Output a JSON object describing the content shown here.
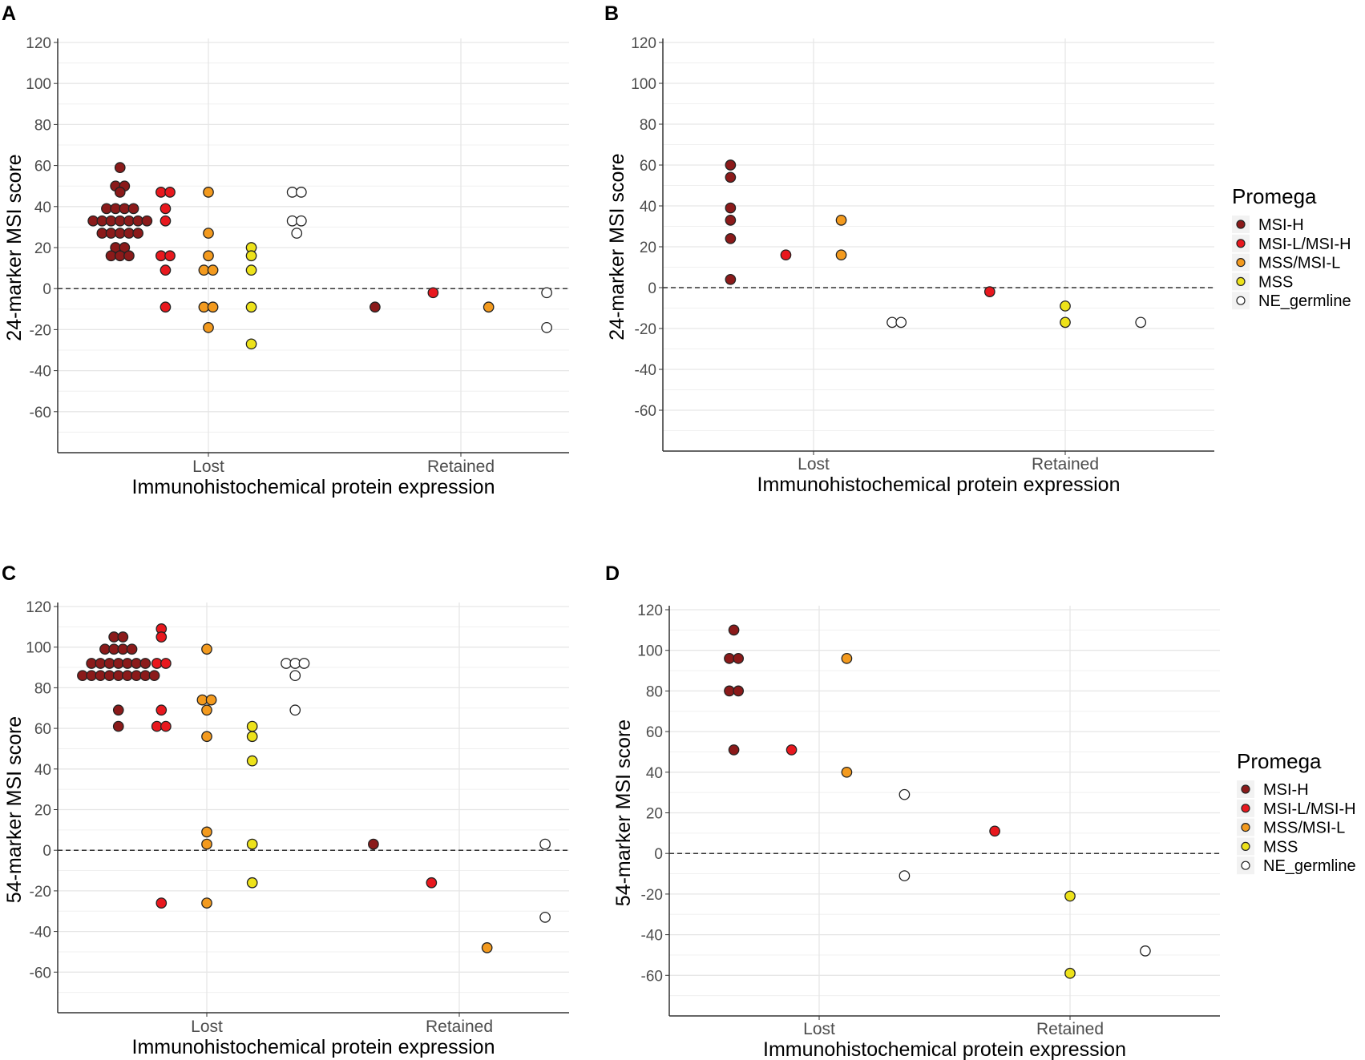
{
  "legend": {
    "title": "Promega",
    "entries": [
      {
        "label": "MSI-H",
        "color": "#8b1a1a"
      },
      {
        "label": "MSI-L/MSI-H",
        "color": "#e8181e"
      },
      {
        "label": "MSS/MSI-L",
        "color": "#f39a1e"
      },
      {
        "label": "MSS",
        "color": "#ede21a"
      },
      {
        "label": "NE_germline",
        "color": "#ffffff"
      }
    ]
  },
  "chart_data": [
    {
      "panel": "A",
      "type": "scatter",
      "xlabel": "Immunohistochemical protein expression",
      "ylabel": "24-marker MSI score",
      "categories": [
        "Lost",
        "Retained"
      ],
      "ylim": [
        -80,
        120
      ],
      "yticks": [
        -60,
        -40,
        -20,
        0,
        20,
        40,
        60,
        80,
        100,
        120
      ],
      "reference_line": 0,
      "series": [
        {
          "category": "Lost",
          "group": "MSI-H",
          "offset": -0.35,
          "values": [
            59,
            50,
            50,
            47,
            39,
            39,
            39,
            39,
            33,
            33,
            33,
            33,
            33,
            33,
            33,
            27,
            27,
            27,
            27,
            27,
            20,
            20,
            16,
            16,
            16
          ]
        },
        {
          "category": "Lost",
          "group": "MSI-L/MSI-H",
          "offset": -0.17,
          "values": [
            47,
            47,
            39,
            33,
            16,
            16,
            9,
            -9
          ]
        },
        {
          "category": "Lost",
          "group": "MSS/MSI-L",
          "offset": 0,
          "values": [
            47,
            27,
            16,
            9,
            9,
            -9,
            -9,
            -19
          ]
        },
        {
          "category": "Lost",
          "group": "MSS",
          "offset": 0.17,
          "values": [
            20,
            16,
            9,
            -9,
            -27
          ]
        },
        {
          "category": "Lost",
          "group": "NE_germline",
          "offset": 0.35,
          "values": [
            47,
            47,
            33,
            33,
            27
          ]
        },
        {
          "category": "Retained",
          "group": "MSI-H",
          "offset": -0.34,
          "values": [
            -9
          ]
        },
        {
          "category": "Retained",
          "group": "MSI-L/MSI-H",
          "offset": -0.11,
          "values": [
            -2
          ]
        },
        {
          "category": "Retained",
          "group": "MSS/MSI-L",
          "offset": 0.11,
          "values": [
            -9
          ]
        },
        {
          "category": "Retained",
          "group": "NE_germline",
          "offset": 0.34,
          "values": [
            -2,
            -19
          ]
        }
      ]
    },
    {
      "panel": "B",
      "type": "scatter",
      "xlabel": "Immunohistochemical protein expression",
      "ylabel": "24-marker MSI score",
      "categories": [
        "Lost",
        "Retained"
      ],
      "ylim": [
        -80,
        120
      ],
      "yticks": [
        -60,
        -40,
        -20,
        0,
        20,
        40,
        60,
        80,
        100,
        120
      ],
      "reference_line": 0,
      "series": [
        {
          "category": "Lost",
          "group": "MSI-H",
          "offset": -0.33,
          "values": [
            60,
            54,
            39,
            33,
            24,
            4
          ]
        },
        {
          "category": "Lost",
          "group": "MSI-L/MSI-H",
          "offset": -0.11,
          "values": [
            16
          ]
        },
        {
          "category": "Lost",
          "group": "MSS/MSI-L",
          "offset": 0.11,
          "values": [
            33,
            16
          ]
        },
        {
          "category": "Lost",
          "group": "NE_germline",
          "offset": 0.33,
          "values": [
            -17,
            -17
          ]
        },
        {
          "category": "Retained",
          "group": "MSI-L/MSI-H",
          "offset": -0.3,
          "values": [
            -2
          ]
        },
        {
          "category": "Retained",
          "group": "MSS",
          "offset": 0,
          "values": [
            -9,
            -17
          ]
        },
        {
          "category": "Retained",
          "group": "NE_germline",
          "offset": 0.3,
          "values": [
            -17
          ]
        }
      ]
    },
    {
      "panel": "C",
      "type": "scatter",
      "xlabel": "Immunohistochemical protein expression",
      "ylabel": "54-marker MSI score",
      "categories": [
        "Lost",
        "Retained"
      ],
      "ylim": [
        -80,
        120
      ],
      "yticks": [
        -60,
        -40,
        -20,
        0,
        20,
        40,
        60,
        80,
        100,
        120
      ],
      "reference_line": 0,
      "series": [
        {
          "category": "Lost",
          "group": "MSI-H",
          "offset": -0.35,
          "values": [
            105,
            105,
            99,
            99,
            99,
            99,
            92,
            92,
            92,
            92,
            92,
            92,
            92,
            86,
            86,
            86,
            86,
            86,
            86,
            86,
            86,
            86,
            69,
            61
          ]
        },
        {
          "category": "Lost",
          "group": "MSI-L/MSI-H",
          "offset": -0.18,
          "values": [
            109,
            105,
            92,
            92,
            69,
            61,
            61,
            -26
          ]
        },
        {
          "category": "Lost",
          "group": "MSS/MSI-L",
          "offset": 0,
          "values": [
            99,
            74,
            74,
            69,
            56,
            9,
            3,
            -26
          ]
        },
        {
          "category": "Lost",
          "group": "MSS",
          "offset": 0.18,
          "values": [
            61,
            56,
            44,
            3,
            -16
          ]
        },
        {
          "category": "Lost",
          "group": "NE_germline",
          "offset": 0.35,
          "values": [
            92,
            92,
            92,
            86,
            69
          ]
        },
        {
          "category": "Retained",
          "group": "MSI-H",
          "offset": -0.34,
          "values": [
            3
          ]
        },
        {
          "category": "Retained",
          "group": "MSI-L/MSI-H",
          "offset": -0.11,
          "values": [
            -16
          ]
        },
        {
          "category": "Retained",
          "group": "MSS/MSI-L",
          "offset": 0.11,
          "values": [
            -48
          ]
        },
        {
          "category": "Retained",
          "group": "NE_germline",
          "offset": 0.34,
          "values": [
            3,
            -33
          ]
        }
      ]
    },
    {
      "panel": "D",
      "type": "scatter",
      "xlabel": "Immunohistochemical protein expression",
      "ylabel": "54-marker MSI score",
      "categories": [
        "Lost",
        "Retained"
      ],
      "ylim": [
        -80,
        120
      ],
      "yticks": [
        -60,
        -40,
        -20,
        0,
        20,
        40,
        60,
        80,
        100,
        120
      ],
      "reference_line": 0,
      "series": [
        {
          "category": "Lost",
          "group": "MSI-H",
          "offset": -0.34,
          "values": [
            110,
            96,
            96,
            80,
            80,
            51
          ]
        },
        {
          "category": "Lost",
          "group": "MSI-L/MSI-H",
          "offset": -0.11,
          "values": [
            51
          ]
        },
        {
          "category": "Lost",
          "group": "MSS/MSI-L",
          "offset": 0.11,
          "values": [
            96,
            40
          ]
        },
        {
          "category": "Lost",
          "group": "NE_germline",
          "offset": 0.34,
          "values": [
            29,
            -11
          ]
        },
        {
          "category": "Retained",
          "group": "MSI-L/MSI-H",
          "offset": -0.3,
          "values": [
            11
          ]
        },
        {
          "category": "Retained",
          "group": "MSS",
          "offset": 0,
          "values": [
            -21,
            -59
          ]
        },
        {
          "category": "Retained",
          "group": "NE_germline",
          "offset": 0.3,
          "values": [
            -48
          ]
        }
      ]
    }
  ]
}
